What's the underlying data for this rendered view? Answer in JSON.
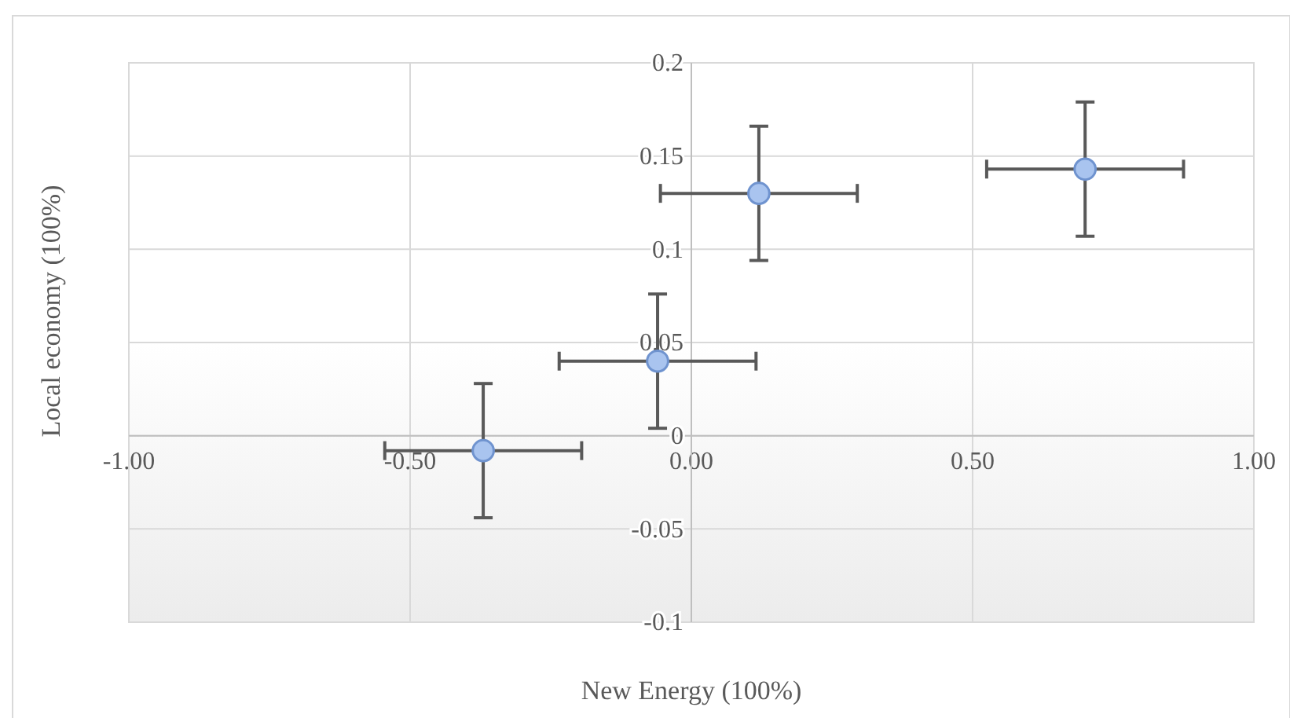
{
  "chart_data": {
    "type": "scatter",
    "xlabel": "New Energy (100%)",
    "ylabel": "Local economy (100%)",
    "x": [
      -0.37,
      -0.06,
      0.12,
      0.7
    ],
    "series": [
      {
        "color": "#a9c4ef",
        "values": [
          -0.008,
          0.04,
          0.13,
          0.143
        ],
        "errors": [
          0.036,
          0.036,
          0.036,
          0.036
        ],
        "xerrors": [
          0.175,
          0.175,
          0.175,
          0.175
        ]
      }
    ],
    "xlim": [
      -1,
      1
    ],
    "xticks": [
      {
        "value": -1,
        "label": "-1.00"
      },
      {
        "value": -0.5,
        "label": "-0.50"
      },
      {
        "value": 0,
        "label": "0.00"
      },
      {
        "value": 0.5,
        "label": "0.50"
      },
      {
        "value": 1,
        "label": "1.00"
      }
    ],
    "ylim": [
      -0.1,
      0.2
    ],
    "yticks": [
      -0.1,
      -0.05,
      0,
      0.05,
      0.1,
      0.15,
      0.2
    ],
    "grid": true,
    "marker": "circle"
  }
}
